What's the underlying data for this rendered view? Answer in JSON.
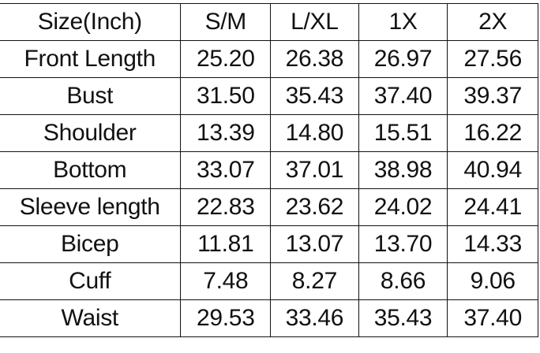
{
  "table": {
    "headers": [
      "Size(Inch)",
      "S/M",
      "L/XL",
      "1X",
      "2X"
    ],
    "rows": [
      [
        "Front Length",
        "25.20",
        "26.38",
        "26.97",
        "27.56"
      ],
      [
        "Bust",
        "31.50",
        "35.43",
        "37.40",
        "39.37"
      ],
      [
        "Shoulder",
        "13.39",
        "14.80",
        "15.51",
        "16.22"
      ],
      [
        "Bottom",
        "33.07",
        "37.01",
        "38.98",
        "40.94"
      ],
      [
        "Sleeve length",
        "22.83",
        "23.62",
        "24.02",
        "24.41"
      ],
      [
        "Bicep",
        "11.81",
        "13.07",
        "13.70",
        "14.33"
      ],
      [
        "Cuff",
        "7.48",
        "8.27",
        "8.66",
        "9.06"
      ],
      [
        "Waist",
        "29.53",
        "33.46",
        "35.43",
        "37.40"
      ]
    ]
  }
}
